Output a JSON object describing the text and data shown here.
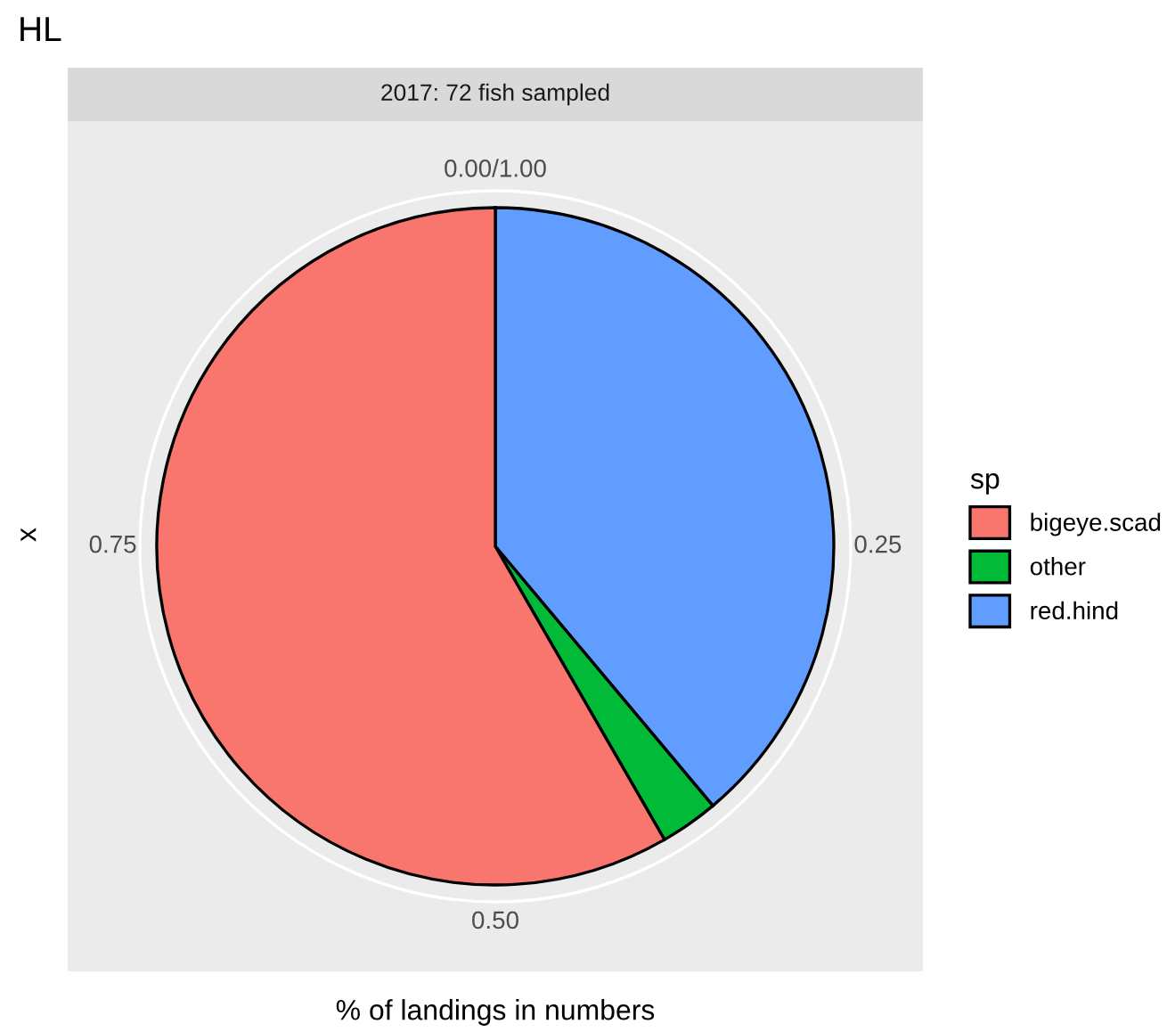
{
  "chart_data": {
    "type": "pie",
    "title": "HL",
    "subtitle": "2017: 72 fish sampled",
    "xlabel": "% of landings in numbers",
    "ylabel": "x",
    "legend_title": "sp",
    "categories": [
      "bigeye.scad",
      "other",
      "red.hind"
    ],
    "values": [
      58.33,
      2.78,
      38.89
    ],
    "colors": [
      "#f8766d",
      "#00ba38",
      "#619cff"
    ],
    "annotations": [
      "0.00/1.00",
      "0.25",
      "0.50",
      "0.75"
    ],
    "grid": true,
    "legend": "right"
  }
}
